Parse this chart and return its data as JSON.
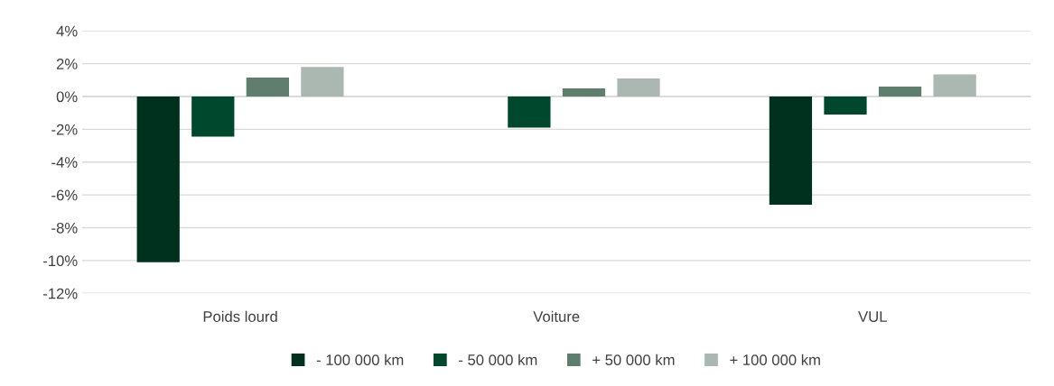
{
  "chart_data": {
    "type": "bar",
    "categories": [
      "Poids lourd",
      "Voiture",
      "VUL"
    ],
    "series": [
      {
        "name": "- 100 000 km",
        "color": "#00311f",
        "values": [
          -10.1,
          null,
          -6.6
        ]
      },
      {
        "name": "- 50 000 km",
        "color": "#00482d",
        "values": [
          -2.45,
          -1.9,
          -1.1
        ]
      },
      {
        "name": "+ 50 000 km",
        "color": "#5f7e6d",
        "values": [
          1.15,
          0.5,
          0.6
        ]
      },
      {
        "name": "+ 100 000 km",
        "color": "#aab8b1",
        "values": [
          1.8,
          1.1,
          1.35
        ]
      }
    ],
    "ylim": [
      -12,
      4
    ],
    "yticks": [
      {
        "value": -12,
        "label": "-12%"
      },
      {
        "value": -10,
        "label": "-10%"
      },
      {
        "value": -8,
        "label": "-8%"
      },
      {
        "value": -6,
        "label": "-6%"
      },
      {
        "value": -4,
        "label": "-4%"
      },
      {
        "value": -2,
        "label": "-2%"
      },
      {
        "value": 0,
        "label": "0%"
      },
      {
        "value": 2,
        "label": "2%"
      },
      {
        "value": 4,
        "label": "4%"
      }
    ],
    "grid": "y",
    "legend": "bottom"
  }
}
